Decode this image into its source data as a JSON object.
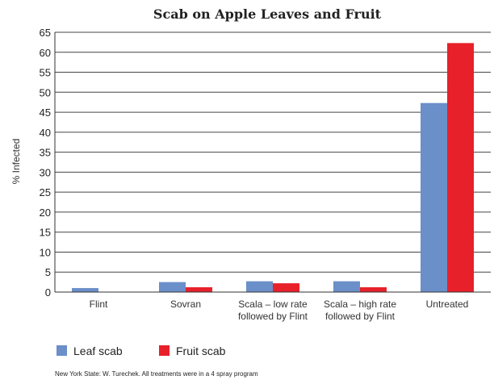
{
  "chart_data": {
    "type": "bar",
    "title": "Scab on Apple Leaves and Fruit",
    "ylabel": "% Infected",
    "xlabel": "",
    "ylim": [
      0,
      65
    ],
    "yticks": [
      0,
      5,
      10,
      15,
      20,
      25,
      30,
      35,
      40,
      45,
      50,
      55,
      60,
      65
    ],
    "grid": true,
    "legend_position": "bottom-left",
    "categories": [
      [
        "Flint"
      ],
      [
        "Sovran"
      ],
      [
        "Scala – low rate",
        "followed by Flint"
      ],
      [
        "Scala – high rate",
        "followed by Flint"
      ],
      [
        "Untreated"
      ]
    ],
    "series": [
      {
        "name": "Leaf scab",
        "color": "#6b8fc9",
        "values": [
          1,
          2.5,
          2.7,
          2.7,
          47.3
        ]
      },
      {
        "name": "Fruit scab",
        "color": "#e8202a",
        "values": [
          0,
          1.2,
          2.2,
          1.2,
          62.3
        ]
      }
    ],
    "footnote": "New York State: W. Turechek. All treatments were in a 4 spray program"
  }
}
